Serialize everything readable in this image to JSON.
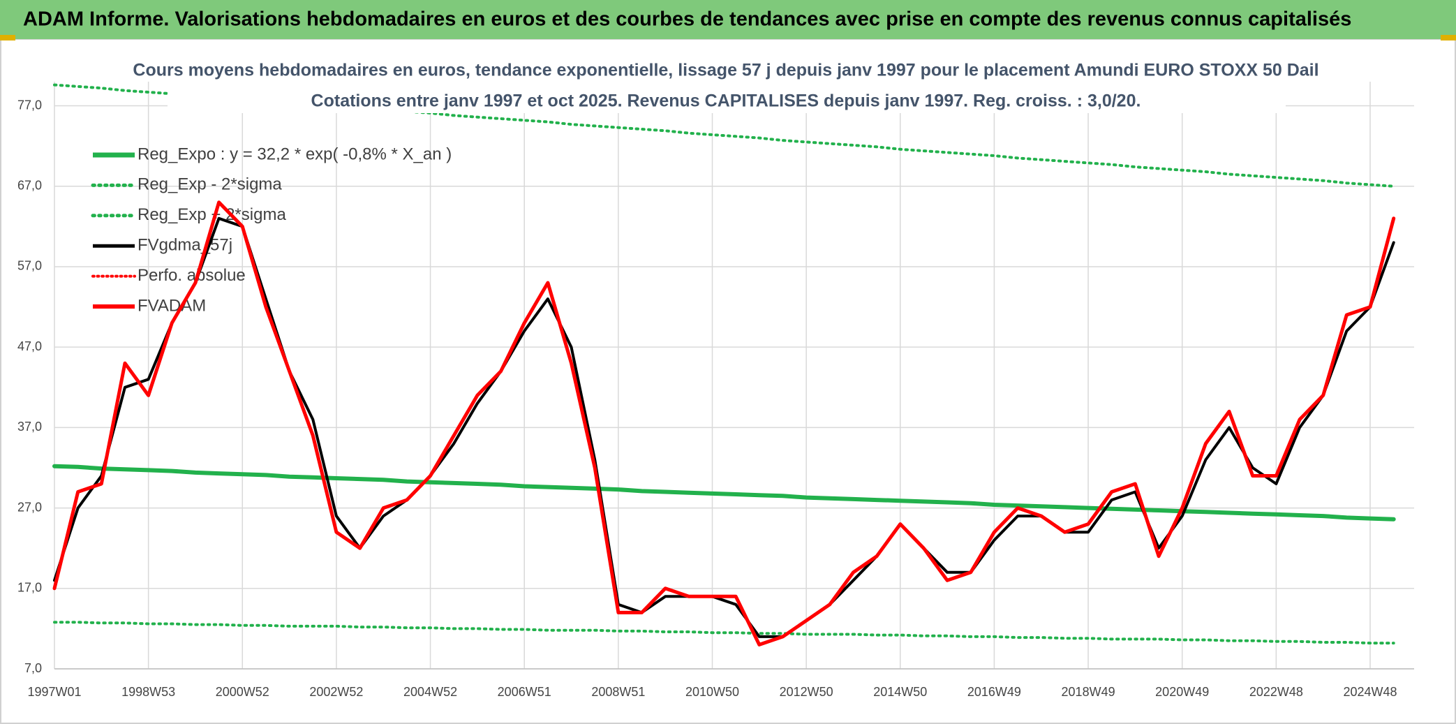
{
  "chart_data": {
    "type": "line",
    "header": "ADAM Informe. Valorisations hebdomadaires en euros et des courbes de tendances avec prise en compte des revenus connus capitalisés",
    "title": "Cours moyens hebdomadaires en euros, tendance exponentielle, lissage 57 j depuis janv 1997 pour le placement Amundi EURO STOXX 50 Dail",
    "subtitle": "Cotations entre janv 1997 et oct 2025. Revenus CAPITALISES depuis janv 1997. Reg. croiss. : 3,0/20.",
    "categories": [
      "1997W01",
      null,
      null,
      null,
      "1998W53",
      null,
      null,
      null,
      "2000W52",
      null,
      null,
      null,
      "2002W52",
      null,
      null,
      null,
      "2004W52",
      null,
      null,
      null,
      "2006W51",
      null,
      null,
      null,
      "2008W51",
      null,
      null,
      null,
      "2010W50",
      null,
      null,
      null,
      "2012W50",
      null,
      null,
      null,
      "2014W50",
      null,
      null,
      null,
      "2016W49",
      null,
      null,
      null,
      "2018W49",
      null,
      null,
      null,
      "2020W49",
      null,
      null,
      null,
      "2022W48",
      null,
      null,
      null,
      "2024W48",
      null
    ],
    "ylim": [
      7,
      80
    ],
    "yticks": [
      {
        "value": 7,
        "label": "7,0"
      },
      {
        "value": 17,
        "label": "17,0"
      },
      {
        "value": 27,
        "label": "27,0"
      },
      {
        "value": 37,
        "label": "37,0"
      },
      {
        "value": 47,
        "label": "47,0"
      },
      {
        "value": 57,
        "label": "57,0"
      },
      {
        "value": 67,
        "label": "67,0"
      },
      {
        "value": 77,
        "label": "77,0"
      }
    ],
    "grid": true,
    "legend": "upper left",
    "series": [
      {
        "name": "Reg_Expo : y = 32,2 * exp( -0,8% *  X_an )",
        "color": "#22b14c",
        "style": "solid",
        "width": 6,
        "values": [
          32.2,
          32.1,
          31.9,
          31.8,
          31.7,
          31.6,
          31.4,
          31.3,
          31.2,
          31.1,
          30.9,
          30.8,
          30.7,
          30.6,
          30.5,
          30.3,
          30.2,
          30.1,
          30.0,
          29.9,
          29.7,
          29.6,
          29.5,
          29.4,
          29.3,
          29.1,
          29.0,
          28.9,
          28.8,
          28.7,
          28.6,
          28.5,
          28.3,
          28.2,
          28.1,
          28.0,
          27.9,
          27.8,
          27.7,
          27.6,
          27.4,
          27.3,
          27.2,
          27.1,
          27.0,
          26.9,
          26.8,
          26.7,
          26.6,
          26.5,
          26.4,
          26.3,
          26.2,
          26.1,
          26.0,
          25.8,
          25.7,
          25.6
        ]
      },
      {
        "name": "Reg_Exp - 2*sigma",
        "color": "#22b14c",
        "style": "dotted",
        "width": 4,
        "values": [
          12.8,
          12.8,
          12.7,
          12.7,
          12.6,
          12.6,
          12.5,
          12.5,
          12.4,
          12.4,
          12.3,
          12.3,
          12.3,
          12.2,
          12.2,
          12.1,
          12.1,
          12.0,
          12.0,
          11.9,
          11.9,
          11.8,
          11.8,
          11.8,
          11.7,
          11.7,
          11.6,
          11.6,
          11.5,
          11.5,
          11.4,
          11.4,
          11.3,
          11.3,
          11.3,
          11.2,
          11.2,
          11.1,
          11.1,
          11.0,
          11.0,
          10.9,
          10.9,
          10.8,
          10.8,
          10.7,
          10.7,
          10.7,
          10.6,
          10.6,
          10.5,
          10.5,
          10.4,
          10.4,
          10.3,
          10.3,
          10.2,
          10.2
        ]
      },
      {
        "name": "Reg_Exp + 2*sigma",
        "color": "#22b14c",
        "style": "dotted",
        "width": 4,
        "values": [
          79.6,
          79.4,
          79.2,
          78.9,
          78.7,
          78.5,
          78.3,
          78.1,
          77.8,
          77.6,
          77.4,
          77.2,
          76.9,
          76.7,
          76.5,
          76.3,
          76.1,
          75.8,
          75.6,
          75.4,
          75.2,
          75.0,
          74.7,
          74.5,
          74.3,
          74.1,
          73.9,
          73.6,
          73.4,
          73.2,
          73.0,
          72.7,
          72.5,
          72.3,
          72.1,
          71.9,
          71.6,
          71.4,
          71.2,
          71.0,
          70.8,
          70.5,
          70.3,
          70.1,
          69.9,
          69.7,
          69.4,
          69.2,
          69.0,
          68.8,
          68.5,
          68.3,
          68.1,
          67.9,
          67.7,
          67.4,
          67.2,
          67.0
        ]
      },
      {
        "name": "FVgdma_57j",
        "color": "#000000",
        "style": "solid",
        "width": 4,
        "values": [
          18,
          27,
          31,
          42,
          43,
          50,
          55,
          63,
          62,
          53,
          44,
          38,
          26,
          22,
          26,
          28,
          31,
          35,
          40,
          44,
          49,
          53,
          47,
          33,
          15,
          14,
          16,
          16,
          16,
          15,
          11,
          11,
          13,
          15,
          18,
          21,
          25,
          22,
          19,
          19,
          23,
          26,
          26,
          24,
          24,
          28,
          29,
          22,
          26,
          33,
          37,
          32,
          30,
          37,
          41,
          49,
          52,
          60
        ]
      },
      {
        "name": "Perfo. absolue",
        "color": "#ff0000",
        "style": "dotted",
        "width": 3,
        "values": [
          17,
          29,
          30,
          45,
          41,
          50,
          55,
          65,
          62,
          52,
          44,
          36,
          24,
          22,
          27,
          28,
          31,
          36,
          41,
          44,
          50,
          55,
          45,
          32,
          14,
          14,
          17,
          16,
          16,
          16,
          10,
          11,
          13,
          15,
          19,
          21,
          25,
          22,
          18,
          19,
          24,
          27,
          26,
          24,
          25,
          29,
          30,
          21,
          27,
          35,
          39,
          31,
          31,
          38,
          41,
          51,
          52,
          63
        ]
      },
      {
        "name": "FVADAM",
        "color": "#ff0000",
        "style": "solid",
        "width": 5,
        "values": [
          17,
          29,
          30,
          45,
          41,
          50,
          55,
          65,
          62,
          52,
          44,
          36,
          24,
          22,
          27,
          28,
          31,
          36,
          41,
          44,
          50,
          55,
          45,
          32,
          14,
          14,
          17,
          16,
          16,
          16,
          10,
          11,
          13,
          15,
          19,
          21,
          25,
          22,
          18,
          19,
          24,
          27,
          26,
          24,
          25,
          29,
          30,
          21,
          27,
          35,
          39,
          31,
          31,
          38,
          41,
          51,
          52,
          63
        ]
      }
    ]
  }
}
